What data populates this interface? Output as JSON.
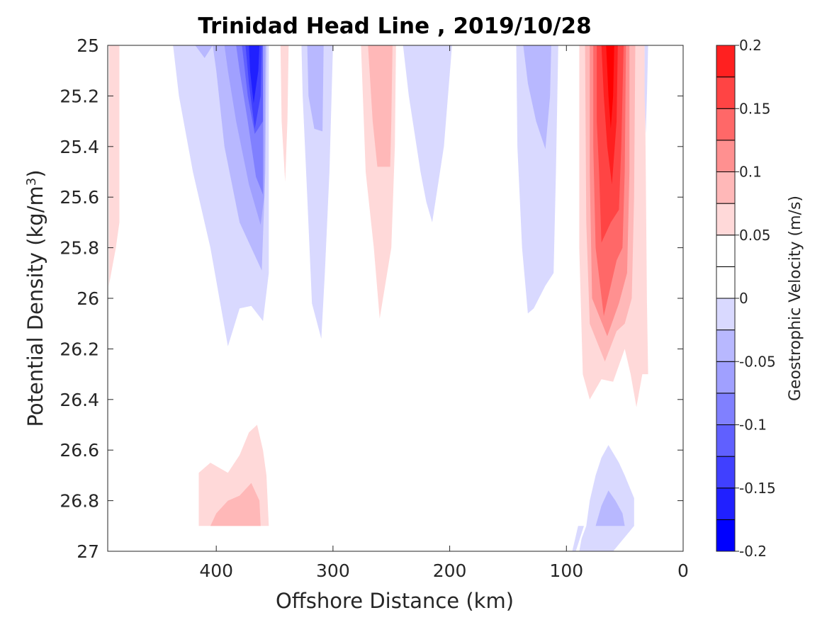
{
  "chart_data": {
    "type": "contourf",
    "title": "Trinidad Head Line , 2019/10/28",
    "xlabel": "Offshore Distance (km)",
    "ylabel_main": "Potential Density (kg/m",
    "ylabel_sup": "3",
    "ylabel_close": ")",
    "x_ticks": [
      400,
      300,
      200,
      100,
      0
    ],
    "y_ticks": [
      "25",
      "25.2",
      "25.4",
      "25.6",
      "25.8",
      "26",
      "26.2",
      "26.4",
      "26.6",
      "26.8",
      "27"
    ],
    "y_tick_values": [
      25,
      25.2,
      25.4,
      25.6,
      25.8,
      26,
      26.2,
      26.4,
      26.6,
      26.8,
      27
    ],
    "xlim": [
      493,
      0
    ],
    "ylim": [
      25,
      27
    ],
    "x_reversed": true,
    "y_reversed": true,
    "grid": false,
    "colorbar": {
      "label": "Geostrophic Velocity (m/s)",
      "clim": [
        -0.2,
        0.2
      ],
      "levels": [
        -0.2,
        -0.175,
        -0.15,
        -0.125,
        -0.1,
        -0.075,
        -0.05,
        -0.025,
        0,
        0.025,
        0.05,
        0.075,
        0.1,
        0.125,
        0.15,
        0.175,
        0.2
      ],
      "tick_values": [
        -0.2,
        -0.15,
        -0.1,
        -0.05,
        0,
        0.05,
        0.1,
        0.15,
        0.2
      ],
      "tick_labels": [
        "-0.2",
        "-0.15",
        "-0.1",
        "-0.05",
        "0",
        "0.05",
        "0.1",
        "0.15",
        "0.2"
      ],
      "colors": [
        "#0000ff",
        "#2020ff",
        "#4040ff",
        "#6060ff",
        "#8080ff",
        "#a0a0ff",
        "#b8b8ff",
        "#d9d9ff",
        "#ffffff",
        "#ffffff",
        "#ffd9d9",
        "#ffb8b8",
        "#ff9090",
        "#ff6868",
        "#ff4444",
        "#ff2020",
        "#ff0000"
      ]
    },
    "regions": [
      {
        "level": 0.025,
        "color": "#ffd9d9",
        "points": [
          [
            492,
            25
          ],
          [
            483,
            25
          ],
          [
            483,
            25.7
          ],
          [
            486,
            25.8
          ],
          [
            492,
            25.95
          ]
        ]
      },
      {
        "level": -0.025,
        "color": "#d9d9ff",
        "points": [
          [
            437,
            25
          ],
          [
            355,
            25
          ],
          [
            355,
            25.9
          ],
          [
            360,
            26.09
          ],
          [
            370,
            26.03
          ],
          [
            380,
            26.04
          ],
          [
            390,
            26.19
          ],
          [
            405,
            25.8
          ],
          [
            420,
            25.5
          ],
          [
            432,
            25.2
          ]
        ]
      },
      {
        "level": -0.05,
        "color": "#b8b8ff",
        "points": [
          [
            418,
            25
          ],
          [
            403,
            25
          ],
          [
            410,
            25.05
          ]
        ]
      },
      {
        "level": -0.05,
        "color": "#b8b8ff",
        "points": [
          [
            403,
            25
          ],
          [
            357,
            25
          ],
          [
            358,
            25.5
          ],
          [
            361,
            25.89
          ],
          [
            380,
            25.7
          ],
          [
            393,
            25.4
          ],
          [
            400,
            25.1
          ]
        ]
      },
      {
        "level": -0.075,
        "color": "#a0a0ff",
        "points": [
          [
            393,
            25
          ],
          [
            358,
            25
          ],
          [
            359,
            25.6
          ],
          [
            362,
            25.71
          ],
          [
            372,
            25.55
          ],
          [
            383,
            25.3
          ],
          [
            390,
            25.1
          ]
        ]
      },
      {
        "level": -0.1,
        "color": "#8080ff",
        "points": [
          [
            383,
            25
          ],
          [
            360,
            25
          ],
          [
            360,
            25.59
          ],
          [
            366,
            25.52
          ],
          [
            373,
            25.3
          ],
          [
            380,
            25.1
          ]
        ]
      },
      {
        "level": -0.125,
        "color": "#6060ff",
        "points": [
          [
            378,
            25
          ],
          [
            360,
            25
          ],
          [
            360,
            25.3
          ],
          [
            367,
            25.35
          ],
          [
            373,
            25.2
          ]
        ]
      },
      {
        "level": -0.15,
        "color": "#4040ff",
        "points": [
          [
            375,
            25
          ],
          [
            361,
            25
          ],
          [
            362,
            25.2
          ],
          [
            367,
            25.33
          ],
          [
            372,
            25.15
          ]
        ]
      },
      {
        "level": -0.175,
        "color": "#2020ff",
        "points": [
          [
            372,
            25
          ],
          [
            363,
            25
          ],
          [
            364,
            25.1
          ],
          [
            368,
            25.23
          ],
          [
            371,
            25.1
          ]
        ]
      },
      {
        "level": 0.025,
        "color": "#ffd9d9",
        "points": [
          [
            345,
            25
          ],
          [
            338,
            25
          ],
          [
            339,
            25.3
          ],
          [
            341,
            25.54
          ],
          [
            344,
            25.3
          ]
        ]
      },
      {
        "level": -0.025,
        "color": "#d9d9ff",
        "points": [
          [
            327,
            25
          ],
          [
            300,
            25
          ],
          [
            303,
            25.5
          ],
          [
            307,
            25.9
          ],
          [
            310,
            26.16
          ],
          [
            318,
            26.02
          ],
          [
            322,
            25.6
          ],
          [
            326,
            25.2
          ]
        ]
      },
      {
        "level": -0.05,
        "color": "#b8b8ff",
        "points": [
          [
            322,
            25
          ],
          [
            308,
            25
          ],
          [
            309,
            25.34
          ],
          [
            316,
            25.33
          ],
          [
            321,
            25.2
          ]
        ]
      },
      {
        "level": 0.025,
        "color": "#ffd9d9",
        "points": [
          [
            276,
            25
          ],
          [
            246,
            25
          ],
          [
            247,
            25.4
          ],
          [
            250,
            25.8
          ],
          [
            260,
            26.08
          ],
          [
            265,
            25.8
          ],
          [
            272,
            25.5
          ]
        ]
      },
      {
        "level": 0.05,
        "color": "#ffb8b8",
        "points": [
          [
            270,
            25
          ],
          [
            249,
            25
          ],
          [
            250,
            25.3
          ],
          [
            251,
            25.48
          ],
          [
            262,
            25.48
          ],
          [
            266,
            25.3
          ]
        ]
      },
      {
        "level": -0.025,
        "color": "#d9d9ff",
        "points": [
          [
            240,
            25
          ],
          [
            198,
            25
          ],
          [
            205,
            25.4
          ],
          [
            215,
            25.7
          ],
          [
            220,
            25.62
          ],
          [
            225,
            25.5
          ],
          [
            235,
            25.2
          ]
        ]
      },
      {
        "level": -0.025,
        "color": "#d9d9ff",
        "points": [
          [
            143,
            25
          ],
          [
            107,
            25
          ],
          [
            109,
            25.5
          ],
          [
            111,
            25.9
          ],
          [
            118,
            25.95
          ],
          [
            128,
            26.04
          ],
          [
            133,
            26.06
          ],
          [
            138,
            25.8
          ],
          [
            142,
            25.4
          ]
        ]
      },
      {
        "level": -0.05,
        "color": "#b8b8ff",
        "points": [
          [
            137,
            25
          ],
          [
            113,
            25
          ],
          [
            114,
            25.2
          ],
          [
            118,
            25.41
          ],
          [
            126,
            25.3
          ],
          [
            133,
            25.15
          ]
        ]
      },
      {
        "level": 0.025,
        "color": "#ffd9d9",
        "points": [
          [
            89,
            25
          ],
          [
            33,
            25
          ],
          [
            32,
            25.5
          ],
          [
            31,
            26.01
          ],
          [
            30,
            26.3
          ],
          [
            35,
            26.3
          ],
          [
            40,
            26.43
          ],
          [
            45,
            26.3
          ],
          [
            50,
            26.2
          ],
          [
            60,
            26.33
          ],
          [
            70,
            26.32
          ],
          [
            80,
            26.4
          ],
          [
            86,
            26.3
          ],
          [
            89,
            25.8
          ]
        ]
      },
      {
        "level": 0.05,
        "color": "#ffb8b8",
        "points": [
          [
            84,
            25
          ],
          [
            41,
            25
          ],
          [
            42,
            25.6
          ],
          [
            44,
            26
          ],
          [
            50,
            26.1
          ],
          [
            57,
            26.13
          ],
          [
            67,
            26.25
          ],
          [
            80,
            26.1
          ],
          [
            83,
            25.7
          ]
        ]
      },
      {
        "level": 0.075,
        "color": "#ff9090",
        "points": [
          [
            80,
            25
          ],
          [
            46,
            25
          ],
          [
            46,
            25.5
          ],
          [
            48,
            25.9
          ],
          [
            55,
            26.02
          ],
          [
            65,
            26.15
          ],
          [
            78,
            26
          ],
          [
            80,
            25.5
          ]
        ]
      },
      {
        "level": 0.1,
        "color": "#ff6868",
        "points": [
          [
            77,
            25
          ],
          [
            49,
            25
          ],
          [
            50,
            25.5
          ],
          [
            52,
            25.8
          ],
          [
            57,
            25.85
          ],
          [
            68,
            26.07
          ],
          [
            75,
            25.8
          ],
          [
            77,
            25.4
          ]
        ]
      },
      {
        "level": 0.125,
        "color": "#ff4444",
        "points": [
          [
            74,
            25
          ],
          [
            51,
            25
          ],
          [
            53,
            25.4
          ],
          [
            55,
            25.65
          ],
          [
            62,
            25.7
          ],
          [
            70,
            25.78
          ],
          [
            72,
            25.5
          ],
          [
            74,
            25.3
          ]
        ]
      },
      {
        "level": 0.15,
        "color": "#ff2020",
        "points": [
          [
            70,
            25
          ],
          [
            56,
            25
          ],
          [
            57,
            25.3
          ],
          [
            61,
            25.55
          ],
          [
            65,
            25.4
          ],
          [
            68,
            25.2
          ]
        ]
      },
      {
        "level": 0.175,
        "color": "#ff0000",
        "points": [
          [
            66,
            25
          ],
          [
            59,
            25
          ],
          [
            60,
            25.2
          ],
          [
            62,
            25.33
          ],
          [
            64,
            25.2
          ]
        ]
      },
      {
        "level": -0.025,
        "color": "#d9d9ff",
        "points": [
          [
            33,
            25
          ],
          [
            30,
            25
          ],
          [
            31,
            25.2
          ],
          [
            32,
            25.35
          ],
          [
            33,
            25.2
          ]
        ]
      },
      {
        "level": 0.025,
        "color": "#ffd9d9",
        "points": [
          [
            415,
            26.9
          ],
          [
            355,
            26.9
          ],
          [
            357,
            26.7
          ],
          [
            360,
            26.6
          ],
          [
            365,
            26.5
          ],
          [
            372,
            26.53
          ],
          [
            380,
            26.62
          ],
          [
            390,
            26.69
          ],
          [
            405,
            26.65
          ],
          [
            415,
            26.69
          ]
        ]
      },
      {
        "level": 0.05,
        "color": "#ffb8b8",
        "points": [
          [
            405,
            26.9
          ],
          [
            362,
            26.9
          ],
          [
            363,
            26.8
          ],
          [
            370,
            26.73
          ],
          [
            380,
            26.78
          ],
          [
            390,
            26.8
          ],
          [
            400,
            26.85
          ]
        ]
      },
      {
        "level": -0.025,
        "color": "#d9d9ff",
        "points": [
          [
            95,
            27
          ],
          [
            89,
            27
          ],
          [
            87,
            26.95
          ],
          [
            83,
            26.9
          ],
          [
            80,
            26.8
          ],
          [
            75,
            26.7
          ],
          [
            70,
            26.63
          ],
          [
            64,
            26.58
          ],
          [
            55,
            26.65
          ],
          [
            50,
            26.7
          ],
          [
            42,
            26.79
          ],
          [
            42,
            26.9
          ],
          [
            60,
            27
          ],
          [
            95,
            27
          ]
        ]
      },
      {
        "level": -0.025,
        "color": "#d9d9ff",
        "points": [
          [
            95,
            27
          ],
          [
            92,
            27
          ],
          [
            85,
            26.9
          ],
          [
            90,
            26.9
          ]
        ]
      },
      {
        "level": -0.05,
        "color": "#b8b8ff",
        "points": [
          [
            75,
            26.9
          ],
          [
            50,
            26.9
          ],
          [
            52,
            26.85
          ],
          [
            58,
            26.8
          ],
          [
            64,
            26.76
          ],
          [
            70,
            26.82
          ]
        ]
      }
    ]
  }
}
